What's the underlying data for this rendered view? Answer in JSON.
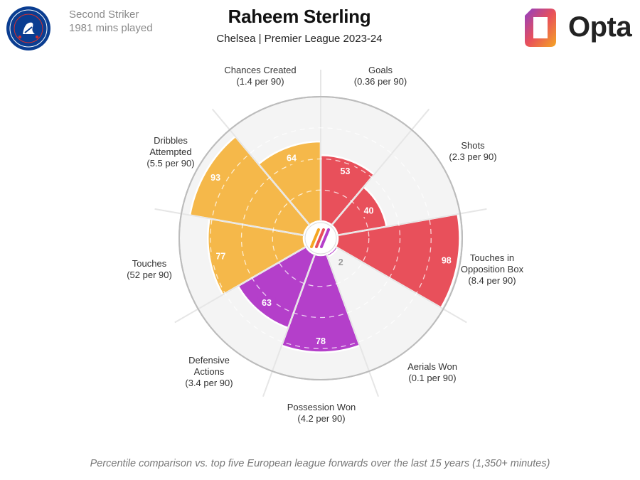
{
  "header": {
    "player_name": "Raheem Sterling",
    "subtitle": "Chelsea | Premier League 2023-24",
    "position": "Second Striker",
    "minutes": "1981 mins played",
    "brand": "Opta",
    "club_crest_text": "CHELSEA FOOTBALL CLUB"
  },
  "footnote": "Percentile comparison vs. top five European league forwards over the last 15 years (1,350+ minutes)",
  "colors": {
    "attacking": "#e8505b",
    "possession": "#b43fca",
    "style": "#f5b84a",
    "grid": "#e6e6e6",
    "background_disc": "#f4f4f4"
  },
  "chart_data": {
    "type": "polar-bar",
    "scale": [
      0,
      100
    ],
    "series": [
      {
        "label": "Goals",
        "per90": "(0.36 per 90)",
        "value": 53,
        "group": "attacking"
      },
      {
        "label": "Shots",
        "per90": "(2.3 per 90)",
        "value": 40,
        "group": "attacking"
      },
      {
        "label": "Touches in Opposition Box",
        "per90": "(8.4 per 90)",
        "value": 98,
        "group": "attacking"
      },
      {
        "label": "Aerials Won",
        "per90": "(0.1 per 90)",
        "value": 2,
        "group": "possession"
      },
      {
        "label": "Possession Won",
        "per90": "(4.2 per 90)",
        "value": 78,
        "group": "possession"
      },
      {
        "label": "Defensive Actions",
        "per90": "(3.4 per 90)",
        "value": 63,
        "group": "possession"
      },
      {
        "label": "Touches",
        "per90": "(52 per 90)",
        "value": 77,
        "group": "style"
      },
      {
        "label": "Dribbles Attempted",
        "per90": "(5.5 per 90)",
        "value": 93,
        "group": "style"
      },
      {
        "label": "Chances Created",
        "per90": "(1.4 per 90)",
        "value": 64,
        "group": "style"
      }
    ]
  }
}
